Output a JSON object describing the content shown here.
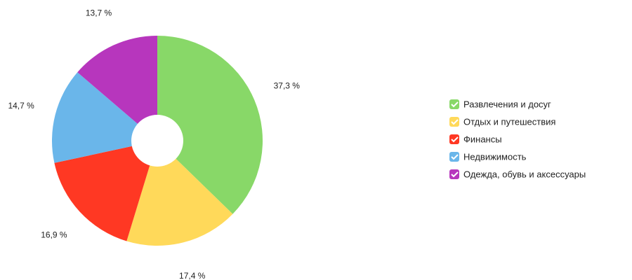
{
  "chart_data": {
    "type": "donut",
    "categories": [
      "Развлечения и досуг",
      "Отдых и путешествия",
      "Финансы",
      "Недвижимость",
      "Одежда, обувь и аксессуары"
    ],
    "values": [
      37.3,
      17.4,
      16.9,
      14.7,
      13.7
    ],
    "value_labels": [
      "37,3 %",
      "17,4 %",
      "16,9 %",
      "14,7 %",
      "13,7 %"
    ],
    "colors": [
      "#88d868",
      "#ffd95a",
      "#ff3823",
      "#6ab6ea",
      "#b736bd"
    ],
    "legend": "right"
  }
}
